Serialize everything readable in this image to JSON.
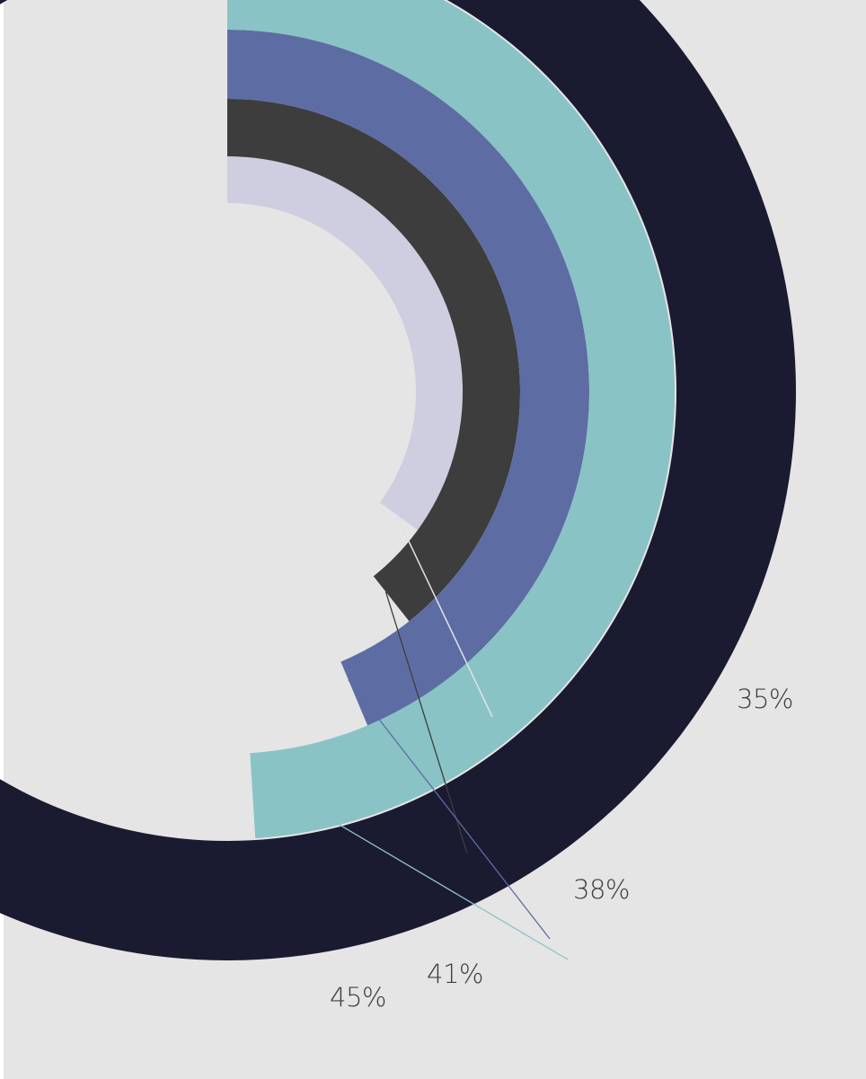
{
  "chart_data": {
    "type": "radial-bar",
    "title": "",
    "start_angle_deg": 0,
    "direction": "clockwise",
    "max_value": 100,
    "series": [
      {
        "value": 35,
        "label": "35%"
      },
      {
        "value": 38,
        "label": "38%"
      },
      {
        "value": 41,
        "label": "41%"
      },
      {
        "value": 45,
        "label": "45%"
      }
    ],
    "background_ring": {
      "value": 62
    },
    "colors": {
      "background": "#e5e5e5",
      "outer_ring": "#1a1a31",
      "bars": [
        "#cfcee0",
        "#3d3d3d",
        "#5d6da3",
        "#89c3c5"
      ],
      "leaders": [
        "#e2e2ee",
        "#3d3d3d",
        "#5d6da3",
        "#89c3c5"
      ],
      "label_text": "#3f3f3f"
    }
  }
}
